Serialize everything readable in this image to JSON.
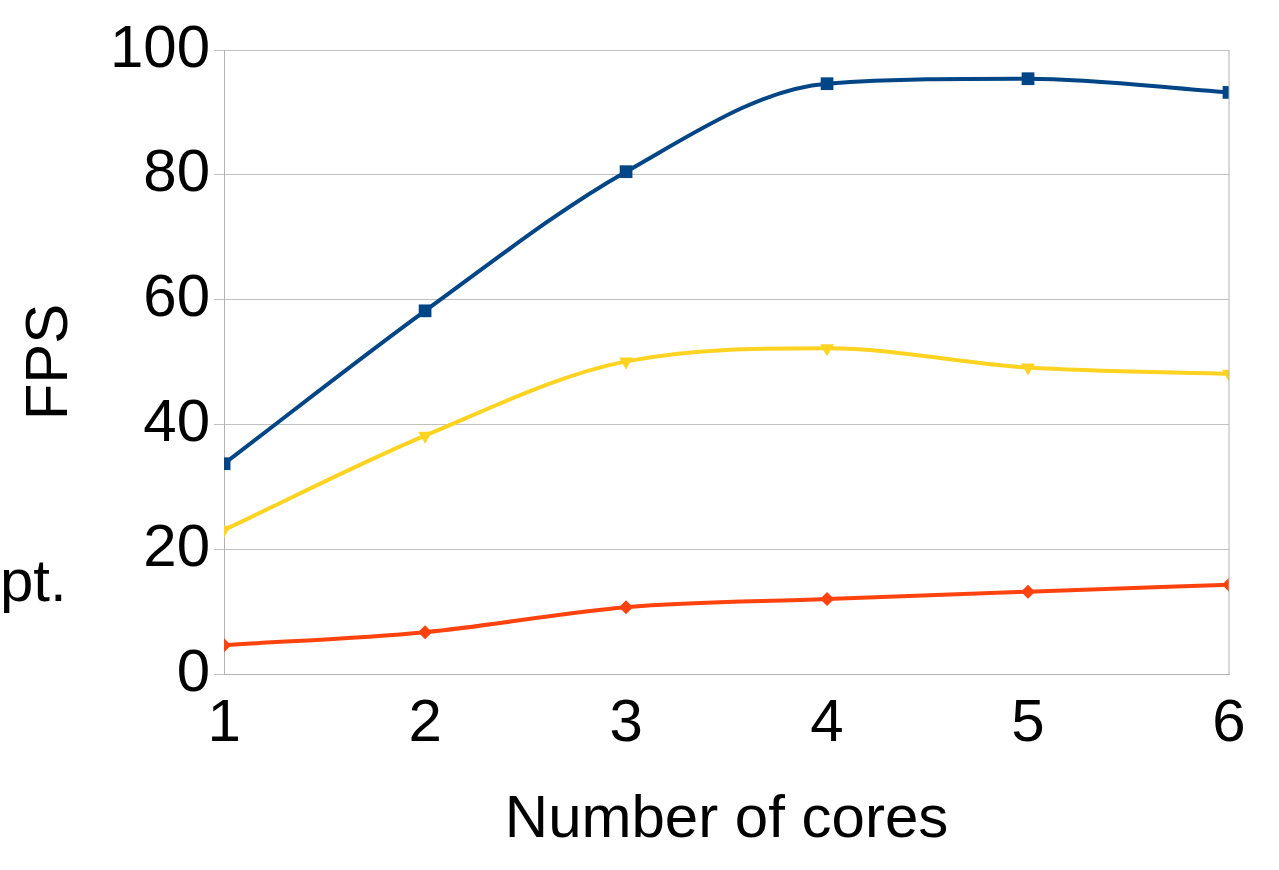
{
  "chart_data": {
    "type": "line",
    "xlabel": "Number of cores",
    "ylabel": "FPS",
    "annotations": [
      "pt."
    ],
    "x": [
      1,
      2,
      3,
      4,
      5,
      6
    ],
    "xlim": [
      1,
      6
    ],
    "xticks": [
      1,
      2,
      3,
      4,
      5,
      6
    ],
    "ylim": [
      0,
      100
    ],
    "yticks": [
      0,
      20,
      40,
      60,
      80,
      100
    ],
    "grid": "y",
    "series": [
      {
        "color": "#004586",
        "marker": "square",
        "values": [
          33.7,
          58.2,
          80.5,
          94.6,
          95.4,
          93.2
        ]
      },
      {
        "color": "#ffd320",
        "marker": "triangle",
        "values": [
          23.1,
          38.2,
          50.1,
          52.2,
          49.1,
          48.1
        ]
      },
      {
        "color": "#ff420e",
        "marker": "diamond",
        "values": [
          4.6,
          6.7,
          10.7,
          12.0,
          13.2,
          14.3
        ]
      }
    ]
  }
}
